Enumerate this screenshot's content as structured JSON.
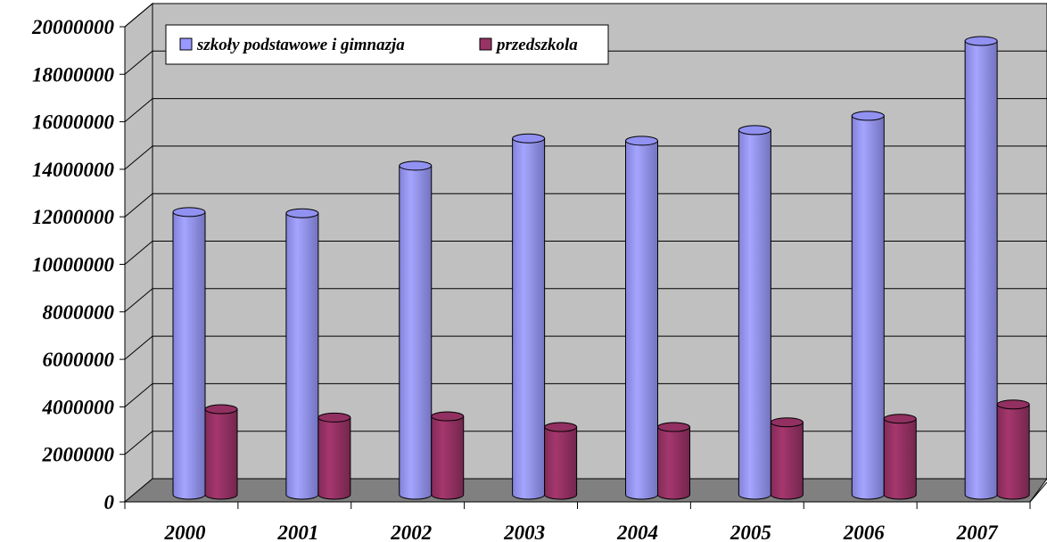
{
  "chart_data": {
    "type": "bar",
    "categories": [
      "2000",
      "2001",
      "2002",
      "2003",
      "2004",
      "2005",
      "2006",
      "2007"
    ],
    "series": [
      {
        "name": "szkoły podstawowe i gimnazja",
        "color": "#9999FF",
        "values": [
          11900000,
          11850000,
          13850000,
          15000000,
          14900000,
          15350000,
          15950000,
          19100000
        ]
      },
      {
        "name": "przedszkola",
        "color": "#993366",
        "values": [
          3600000,
          3250000,
          3300000,
          2850000,
          2850000,
          3050000,
          3200000,
          3800000
        ]
      }
    ],
    "ylim": [
      0,
      20000000
    ],
    "yticks": [
      "0",
      "2000000",
      "4000000",
      "6000000",
      "8000000",
      "10000000",
      "12000000",
      "14000000",
      "16000000",
      "18000000",
      "20000000"
    ],
    "grid": true,
    "legend": "top-left",
    "title": "",
    "xlabel": "",
    "ylabel": ""
  }
}
